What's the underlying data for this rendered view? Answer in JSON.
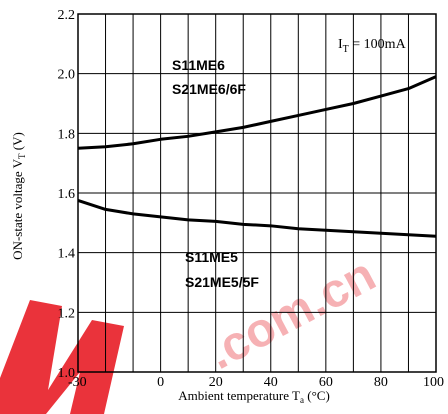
{
  "chart_data": {
    "type": "line",
    "title": "",
    "xlabel_prefix": "Ambient temperature T",
    "xlabel_sub": "a",
    "xlabel_unit": "(°C)",
    "ylabel_prefix": "ON-state voltage V",
    "ylabel_sub": "T",
    "ylabel_unit": "(V)",
    "xlim": [
      -30,
      100
    ],
    "ylim": [
      1.0,
      2.2
    ],
    "xticks": [
      "-30",
      "0",
      "20",
      "40",
      "60",
      "80",
      "100"
    ],
    "xtick_values": [
      -30,
      0,
      20,
      40,
      60,
      80,
      100
    ],
    "yticks": [
      "1.0",
      "1.2",
      "1.4",
      "1.6",
      "1.8",
      "2.0",
      "2.2"
    ],
    "ytick_values": [
      1.0,
      1.2,
      1.4,
      1.6,
      1.8,
      2.0,
      2.2
    ],
    "grid_x": [
      -30,
      -20,
      -10,
      0,
      10,
      20,
      30,
      40,
      50,
      60,
      70,
      80,
      90,
      100
    ],
    "grid_y": [
      1.0,
      1.2,
      1.4,
      1.6,
      1.8,
      2.0,
      2.2
    ],
    "annotation": {
      "prefix": "I",
      "sub": "T",
      "suffix": " = 100mA"
    },
    "series": [
      {
        "label_lines": [
          "S11ME6",
          "S21ME6/6F"
        ],
        "color": "#000000",
        "x": [
          -30,
          -20,
          -10,
          0,
          10,
          20,
          30,
          40,
          50,
          60,
          70,
          80,
          90,
          100
        ],
        "y": [
          1.75,
          1.755,
          1.765,
          1.78,
          1.79,
          1.805,
          1.82,
          1.84,
          1.86,
          1.88,
          1.9,
          1.925,
          1.95,
          1.99
        ]
      },
      {
        "label_lines": [
          "S11ME5",
          "S21ME5/5F"
        ],
        "color": "#000000",
        "x": [
          -30,
          -20,
          -10,
          0,
          10,
          20,
          30,
          40,
          50,
          60,
          70,
          80,
          90,
          100
        ],
        "y": [
          1.575,
          1.545,
          1.53,
          1.52,
          1.51,
          1.505,
          1.495,
          1.49,
          1.48,
          1.475,
          1.47,
          1.465,
          1.46,
          1.455
        ]
      }
    ]
  },
  "watermark": {
    "text": ".com.cn",
    "color": "#e8222a"
  }
}
